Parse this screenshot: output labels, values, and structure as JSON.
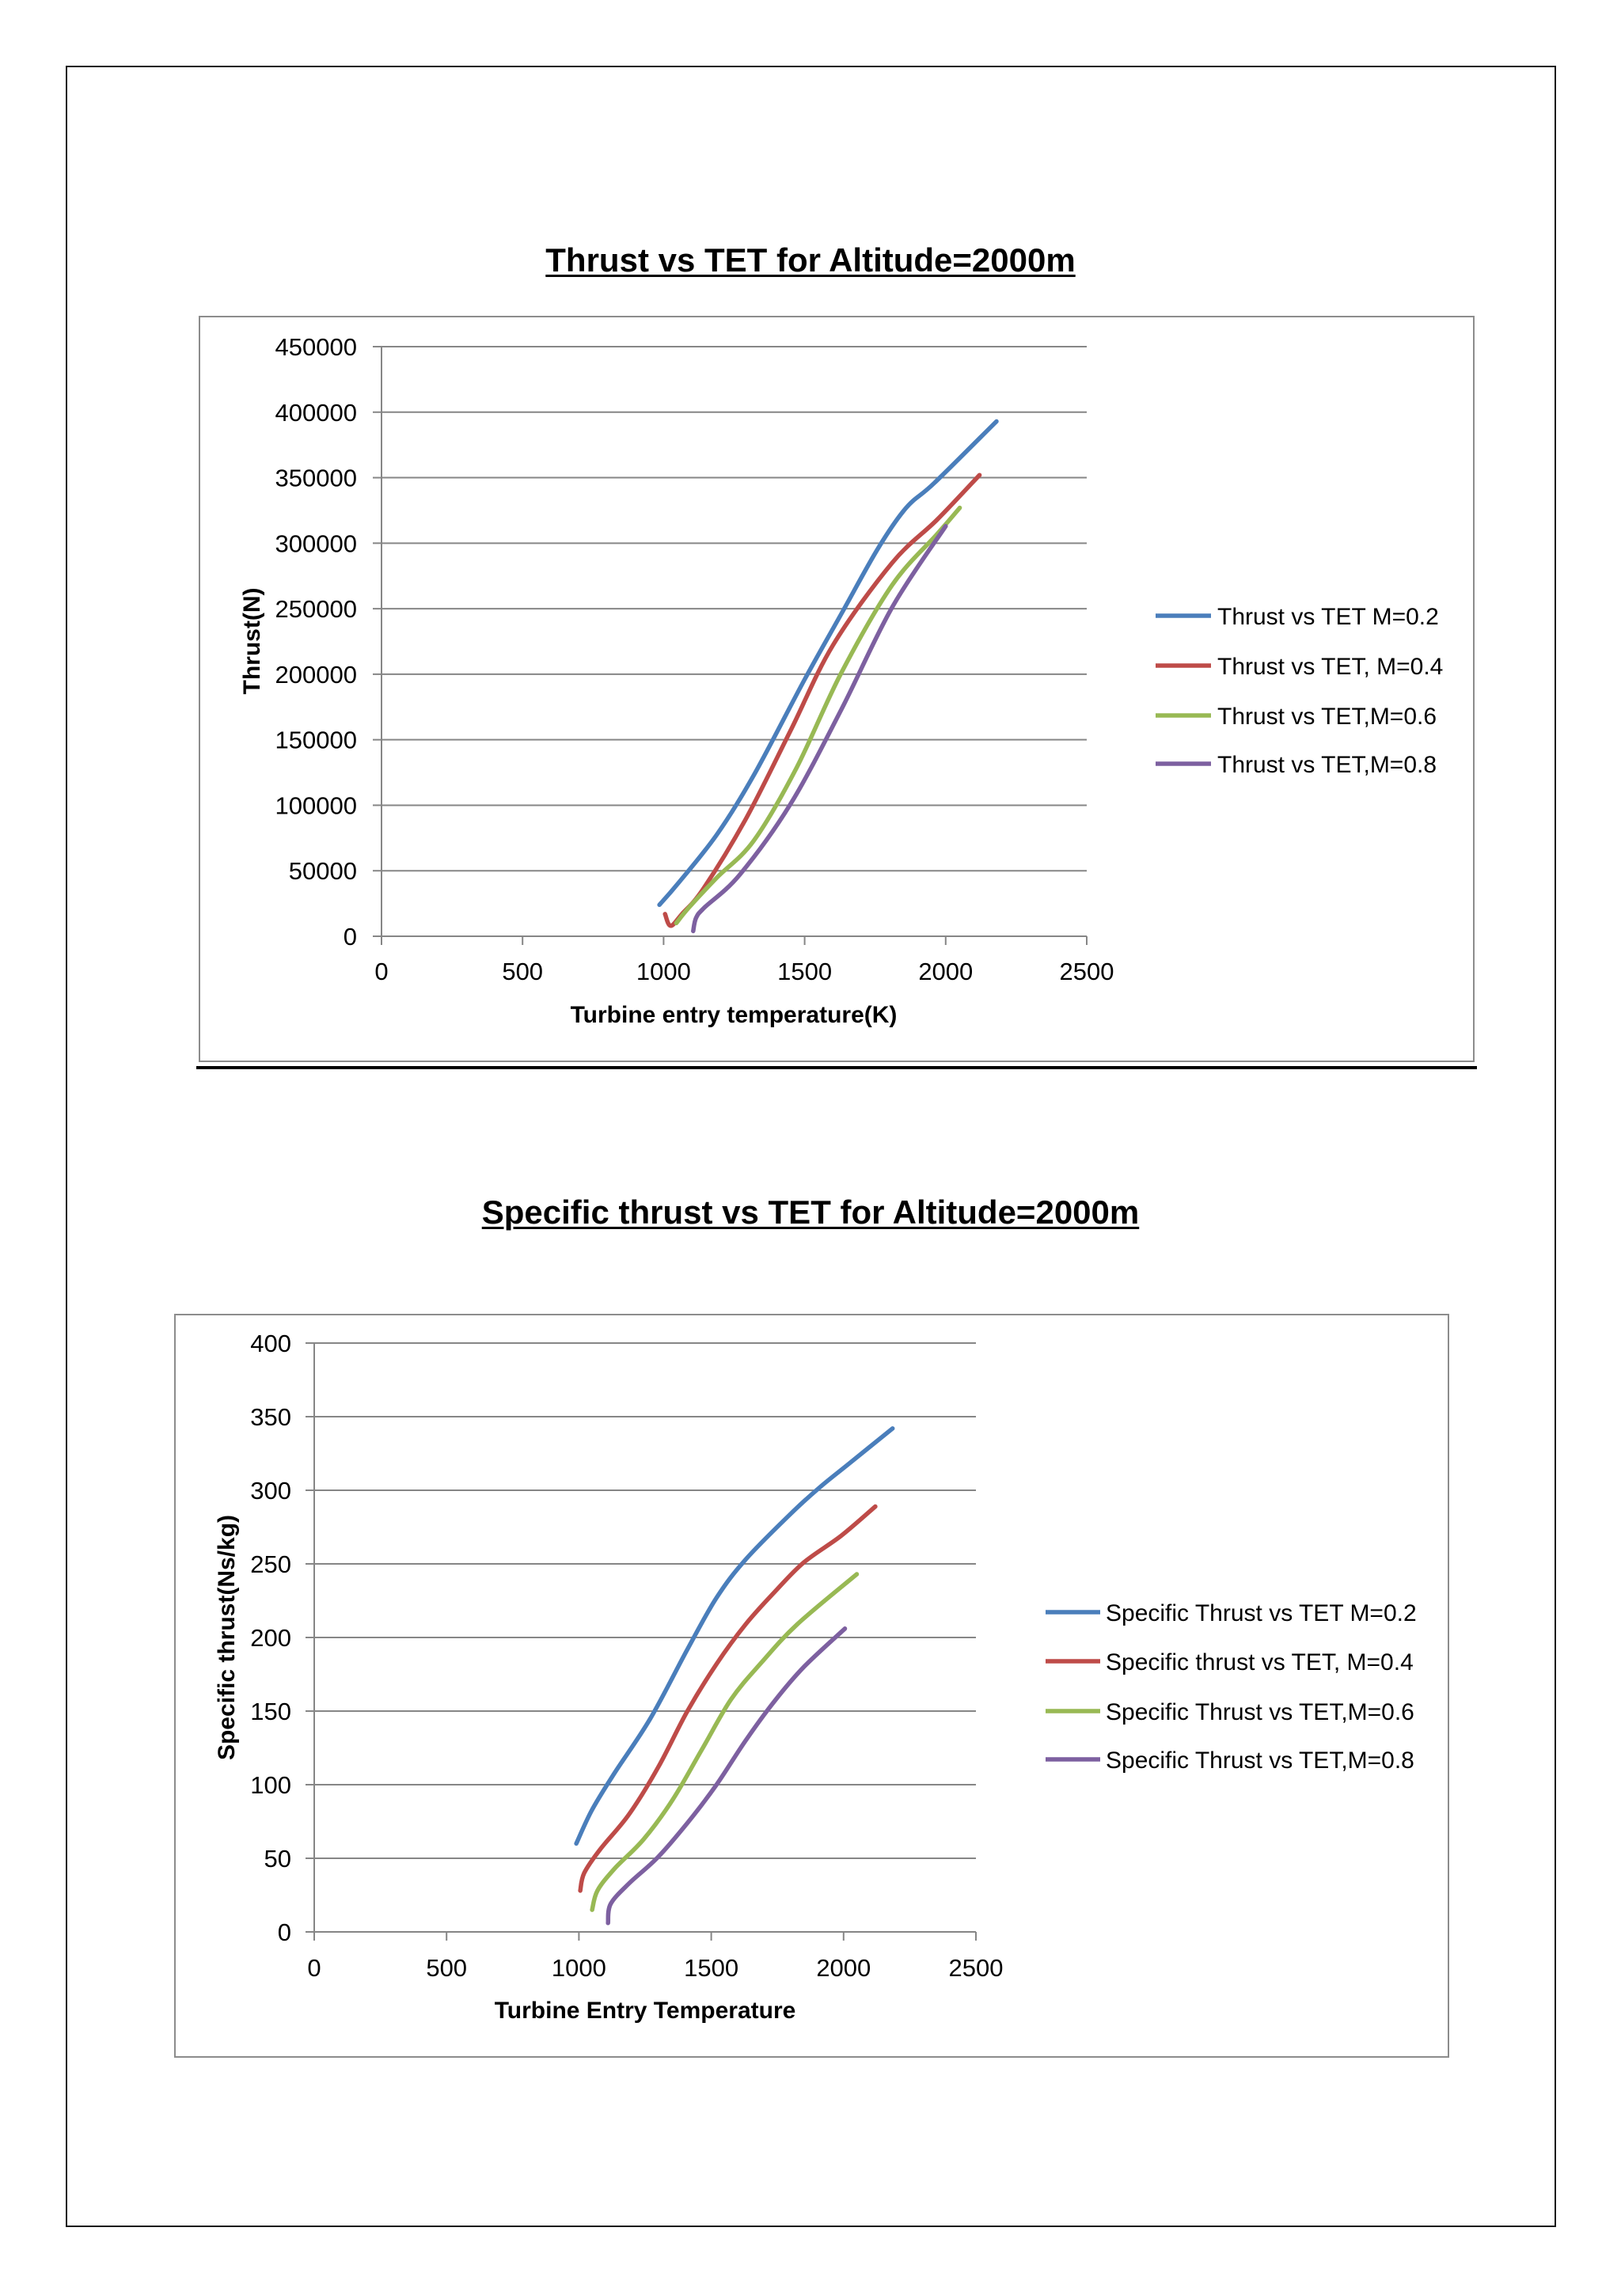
{
  "chart_data": [
    {
      "type": "line",
      "title": "Thrust vs TET for Altitude=2000m",
      "xlabel": "Turbine entry temperature(K)",
      "ylabel": "Thrust(N)",
      "xlim": [
        0,
        2500
      ],
      "ylim": [
        0,
        450000
      ],
      "xticks": [
        0,
        500,
        1000,
        1500,
        2000,
        2500
      ],
      "yticks": [
        0,
        50000,
        100000,
        150000,
        200000,
        250000,
        300000,
        350000,
        400000,
        450000
      ],
      "grid": true,
      "legend": "right",
      "series": [
        {
          "name": "Thrust vs TET M=0.2",
          "color": "#4A7EBB",
          "x": [
            985,
            1050,
            1190,
            1320,
            1500,
            1630,
            1760,
            1860,
            1960,
            2180
          ],
          "y": [
            24000,
            40000,
            78000,
            123000,
            196000,
            246000,
            296000,
            327000,
            346000,
            393000
          ]
        },
        {
          "name": "Thrust vs TET, M=0.4",
          "color": "#BE4B48",
          "x": [
            1005,
            1025,
            1065,
            1140,
            1290,
            1450,
            1600,
            1810,
            1970,
            2120
          ],
          "y": [
            17000,
            8000,
            17000,
            36000,
            89000,
            157000,
            222000,
            285000,
            318000,
            352000
          ]
        },
        {
          "name": "Thrust vs TET,M=0.6",
          "color": "#98B954",
          "x": [
            1045,
            1090,
            1190,
            1320,
            1470,
            1630,
            1810,
            1970,
            2050
          ],
          "y": [
            10000,
            22000,
            45000,
            73000,
            128000,
            201000,
            268000,
            307000,
            327000
          ]
        },
        {
          "name": "Thrust vs TET,M=0.8",
          "color": "#7D60A0",
          "x": [
            1105,
            1115,
            1145,
            1270,
            1450,
            1630,
            1810,
            2000
          ],
          "y": [
            4000,
            14000,
            22000,
            47000,
            101000,
            173000,
            251000,
            313000
          ]
        }
      ]
    },
    {
      "type": "line",
      "title": "Specific thrust vs TET for Altitude=2000m",
      "xlabel": "Turbine Entry Temperature",
      "ylabel": "Specific thrust(Ns/kg)",
      "xlim": [
        0,
        2500
      ],
      "ylim": [
        0,
        400
      ],
      "xticks": [
        0,
        500,
        1000,
        1500,
        2000,
        2500
      ],
      "yticks": [
        0,
        50,
        100,
        150,
        200,
        250,
        300,
        350,
        400
      ],
      "grid": true,
      "legend": "right",
      "series": [
        {
          "name": "Specific Thrust vs TET M=0.2",
          "color": "#4A7EBB",
          "x": [
            990,
            1050,
            1135,
            1270,
            1410,
            1520,
            1630,
            1800,
            1910,
            2020,
            2185
          ],
          "y": [
            60,
            83,
            108,
            145,
            192,
            227,
            253,
            284,
            302,
            318,
            342
          ]
        },
        {
          "name": "Specific thrust vs TET, M=0.4",
          "color": "#BE4B48",
          "x": [
            1005,
            1020,
            1080,
            1190,
            1300,
            1410,
            1520,
            1630,
            1740,
            1850,
            1990,
            2120
          ],
          "y": [
            28,
            40,
            56,
            80,
            112,
            150,
            182,
            209,
            231,
            251,
            269,
            289
          ]
        },
        {
          "name": "Specific Thrust vs TET,M=0.6",
          "color": "#98B954",
          "x": [
            1050,
            1070,
            1135,
            1245,
            1355,
            1465,
            1575,
            1690,
            1825,
            2050
          ],
          "y": [
            15,
            28,
            43,
            63,
            90,
            124,
            158,
            183,
            209,
            243
          ]
        },
        {
          "name": "Specific Thrust vs TET,M=0.8",
          "color": "#7D60A0",
          "x": [
            1110,
            1120,
            1190,
            1300,
            1410,
            1520,
            1630,
            1740,
            1850,
            2005
          ],
          "y": [
            6,
            19,
            33,
            51,
            74,
            100,
            130,
            157,
            180,
            206
          ]
        }
      ]
    }
  ]
}
